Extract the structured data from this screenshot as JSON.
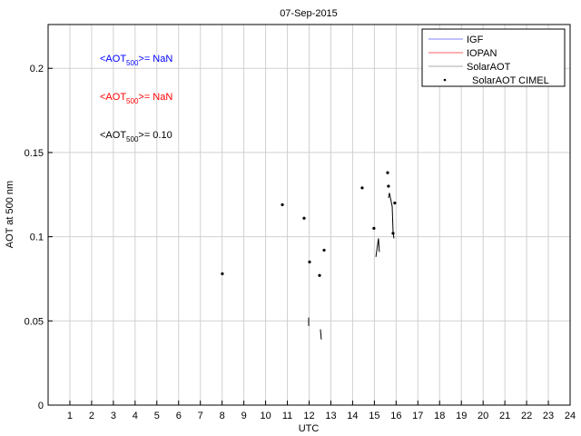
{
  "chart_data": {
    "type": "line",
    "title": "07-Sep-2015",
    "xlabel": "UTC",
    "ylabel": "AOT at 500 nm",
    "xlim": [
      0,
      24
    ],
    "ylim": [
      0,
      0.226
    ],
    "grid": true,
    "xticks": [
      1,
      2,
      3,
      4,
      5,
      6,
      7,
      8,
      9,
      10,
      11,
      12,
      13,
      14,
      15,
      16,
      17,
      18,
      19,
      20,
      21,
      22,
      23,
      24
    ],
    "xtick_labels": [
      "1",
      "2",
      "3",
      "4",
      "5",
      "6",
      "7",
      "8",
      "9",
      "10",
      "11",
      "12",
      "13",
      "14",
      "15",
      "16",
      "17",
      "18",
      "19",
      "20",
      "21",
      "22",
      "23",
      "24"
    ],
    "yticks": [
      0,
      0.05,
      0.1,
      0.15,
      0.2
    ],
    "ytick_labels": [
      "0",
      "0.05",
      "0.1",
      "0.15",
      "0.2"
    ],
    "legend_placement": "top-right",
    "series": [
      {
        "name": "IGF",
        "color": "#8080ff",
        "style": "line",
        "segments": []
      },
      {
        "name": "IOPAN",
        "color": "#ff6060",
        "style": "line",
        "segments": [
          [
            [
              7.1,
              0
            ],
            [
              9.2,
              0
            ]
          ]
        ]
      },
      {
        "name": "SolarAOT",
        "color": "#000000",
        "style": "line",
        "segments": [
          [
            [
              11.98,
              0.052
            ],
            [
              11.98,
              0.047
            ]
          ],
          [
            [
              12.52,
              0.045
            ],
            [
              12.56,
              0.039
            ]
          ],
          [
            [
              15.07,
              0.088
            ],
            [
              15.19,
              0.099
            ],
            [
              15.23,
              0.091
            ]
          ],
          [
            [
              15.65,
              0.123
            ],
            [
              15.69,
              0.126
            ],
            [
              15.82,
              0.118
            ],
            [
              15.86,
              0.103
            ],
            [
              15.9,
              0.099
            ]
          ]
        ]
      },
      {
        "name": "SolarAOT CIMEL",
        "color": "#000000",
        "style": "points",
        "points": [
          [
            8.01,
            0.078
          ],
          [
            10.77,
            0.119
          ],
          [
            11.77,
            0.111
          ],
          [
            12.02,
            0.085
          ],
          [
            12.48,
            0.077
          ],
          [
            12.69,
            0.092
          ],
          [
            14.44,
            0.129
          ],
          [
            14.98,
            0.105
          ],
          [
            15.61,
            0.138
          ],
          [
            15.65,
            0.13
          ],
          [
            15.94,
            0.12
          ],
          [
            15.86,
            0.102
          ]
        ]
      }
    ],
    "annotations": [
      {
        "prefix": "<AOT",
        "sub": "500",
        "suffix": ">=  NaN",
        "color": "#0000ff"
      },
      {
        "prefix": "<AOT",
        "sub": "500",
        "suffix": ">=  NaN",
        "color": "#ff0000"
      },
      {
        "prefix": "<AOT",
        "sub": "500",
        "suffix": ">= 0.10",
        "color": "#000000"
      }
    ]
  }
}
